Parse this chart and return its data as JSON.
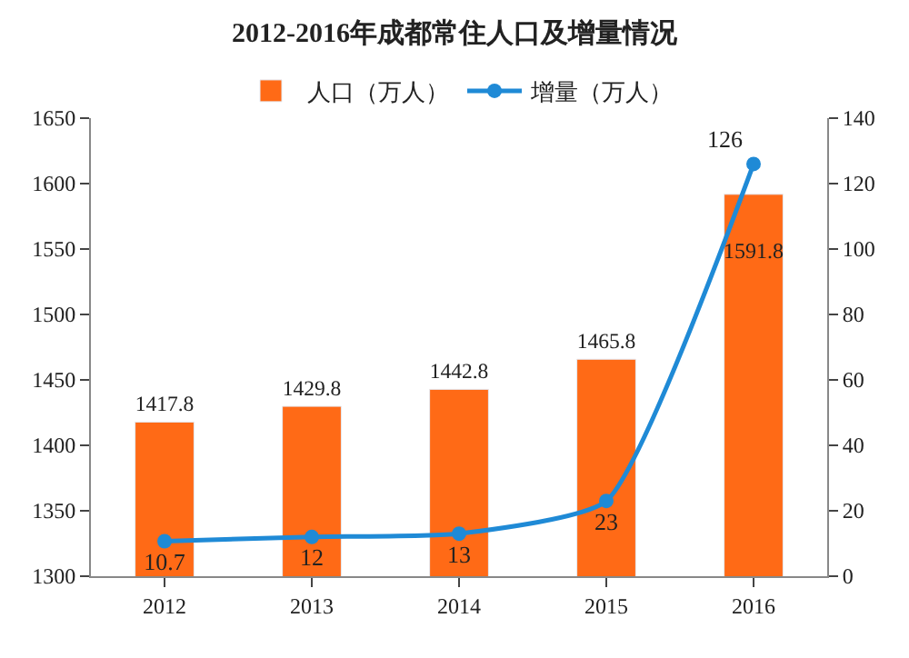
{
  "chart_data": {
    "type": "bar",
    "title": "2012-2016年成都常住人口及增量情况",
    "categories": [
      "2012",
      "2013",
      "2014",
      "2015",
      "2016"
    ],
    "series": [
      {
        "name": "人口（万人）",
        "color": "#ff6a16",
        "values": [
          1417.8,
          1429.8,
          1442.8,
          1465.8,
          1591.8
        ]
      },
      {
        "name": "增量（万人）",
        "color": "#1f8ad6",
        "type": "line",
        "axis": "y2",
        "marker": "circle",
        "values": [
          10.7,
          12,
          13,
          23,
          126
        ]
      }
    ],
    "ylim": [
      1300,
      1650
    ],
    "yticks": [
      1300,
      1350,
      1400,
      1450,
      1500,
      1550,
      1600,
      1650
    ],
    "y2lim": [
      0,
      140
    ],
    "y2ticks": [
      0,
      20,
      40,
      60,
      80,
      100,
      120,
      140
    ],
    "data_labels": true,
    "legend": "top"
  }
}
